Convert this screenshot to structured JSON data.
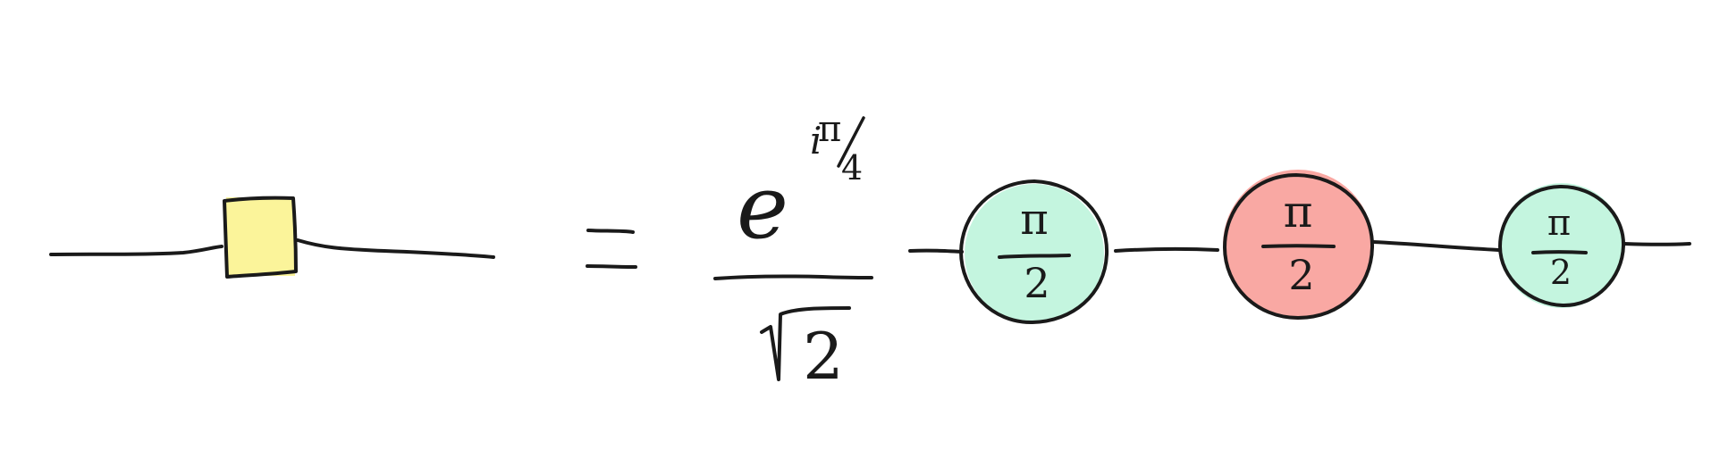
{
  "equation": {
    "equals": "=",
    "prefactor": {
      "base": "e",
      "exponent_i": "i",
      "exponent_pi": "π",
      "exponent_slash": "/",
      "exponent_4": "4",
      "sqrt_symbol": "√",
      "sqrt_radicand": "2"
    }
  },
  "spiders": [
    {
      "phase_numerator": "π",
      "phase_denominator": "2",
      "fill_color": "#c4f5df",
      "kind": "green-spider"
    },
    {
      "phase_numerator": "π",
      "phase_denominator": "2",
      "fill_color": "#f9a8a3",
      "kind": "red-spider"
    },
    {
      "phase_numerator": "π",
      "phase_denominator": "2",
      "fill_color": "#c4f5df",
      "kind": "green-spider"
    }
  ],
  "hadamard_box": {
    "fill_color": "#fbf49a"
  },
  "ink_color": "#1a1a1a"
}
